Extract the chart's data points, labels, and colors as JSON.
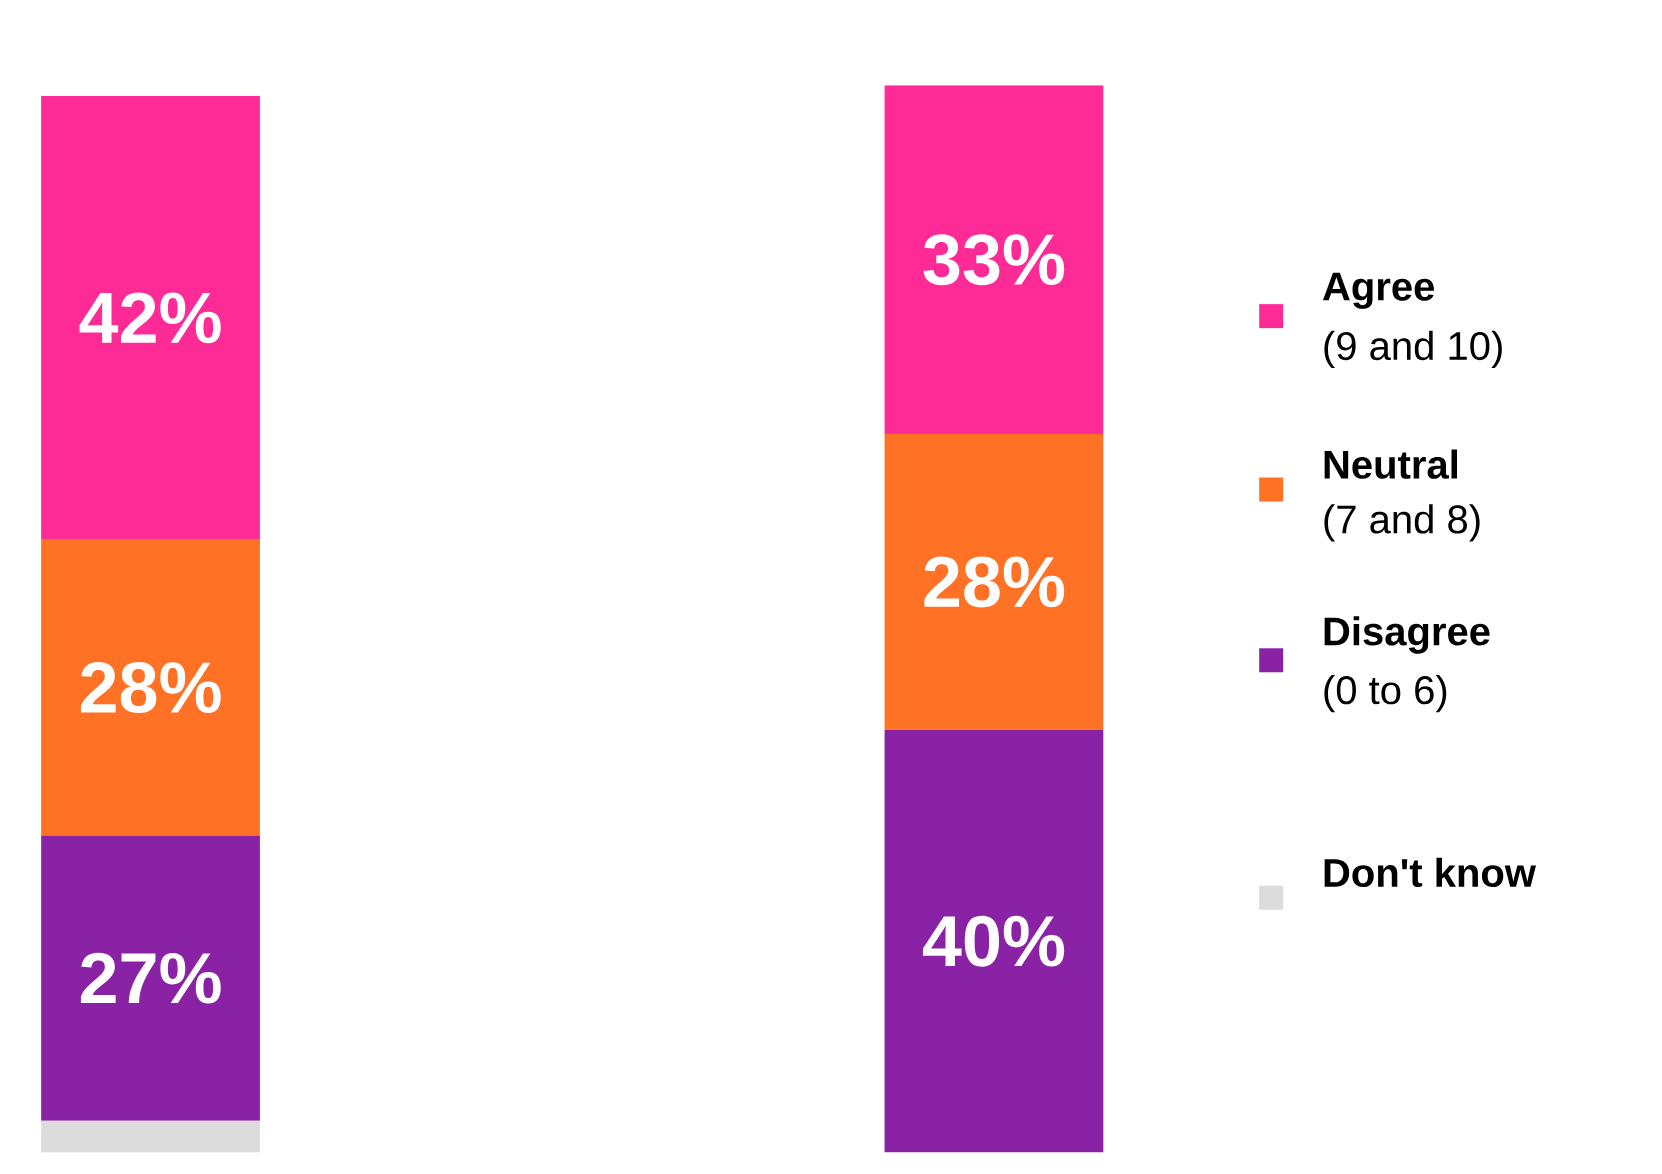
{
  "chart_data": {
    "type": "bar",
    "stacked": true,
    "categories": [
      null,
      null
    ],
    "legend": "right",
    "series": [
      {
        "name": "Don't know",
        "color": "#dcdcdc",
        "values": [
          3,
          0
        ],
        "value_labels": [
          null,
          null
        ]
      },
      {
        "name": "Disagree",
        "color": "#8a22a6",
        "values": [
          27,
          40
        ],
        "value_labels": [
          "27%",
          "40%"
        ]
      },
      {
        "name": "Neutral",
        "color": "#ff7125",
        "values": [
          28,
          28
        ],
        "value_labels": [
          "28%",
          "28%"
        ]
      },
      {
        "name": "Agree",
        "color": "#fe2b96",
        "values": [
          42,
          33
        ],
        "value_labels": [
          "42%",
          "33%"
        ]
      }
    ],
    "annotations": [
      "(0 to 6)",
      "(7 and 8)",
      "(9 and 10)"
    ]
  }
}
